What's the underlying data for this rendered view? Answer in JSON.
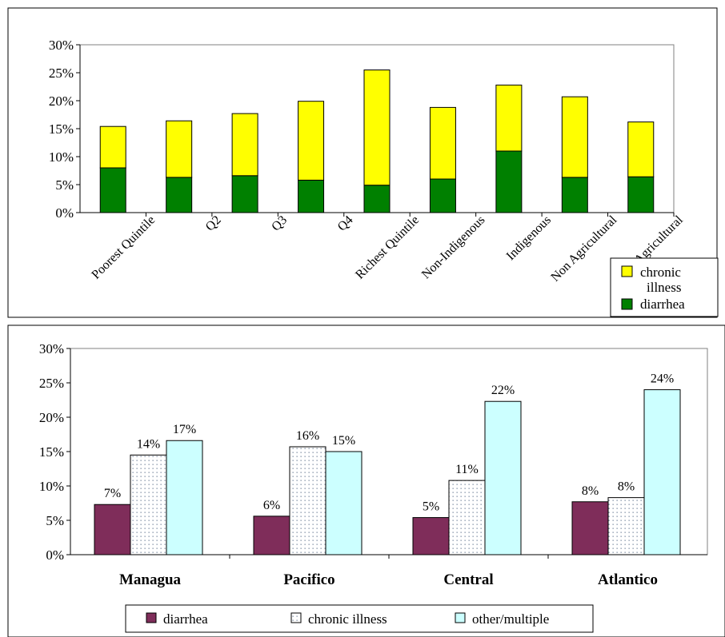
{
  "colors": {
    "chronic": "#ffff00",
    "diarrhea_top": "#008000",
    "diarrhea_bottom": "#7f2d5a",
    "other": "#ccffff",
    "dots": "#7a8aa0"
  },
  "chart_data": [
    {
      "type": "bar",
      "stacked": true,
      "categories": [
        "Poorest Quintile",
        "Q2",
        "Q3",
        "Q4",
        "Richest Quintile",
        "Non-Indigenous",
        "Indigenous",
        "Non Agricultural",
        "Agricultural"
      ],
      "series": [
        {
          "name": "diarrhea",
          "values": [
            8.0,
            6.3,
            6.6,
            5.8,
            4.9,
            6.0,
            11.0,
            6.3,
            6.4
          ]
        },
        {
          "name": "chronic illness",
          "values": [
            7.4,
            10.1,
            11.1,
            14.1,
            20.6,
            12.8,
            11.8,
            14.4,
            9.8
          ]
        }
      ],
      "yticks": [
        "0%",
        "5%",
        "10%",
        "15%",
        "20%",
        "25%",
        "30%"
      ],
      "ylim": [
        0,
        30
      ],
      "legend": [
        "chronic illness",
        "diarrhea"
      ],
      "legend_position": "bottom-right"
    },
    {
      "type": "bar",
      "categories": [
        "Managua",
        "Pacifico",
        "Central",
        "Atlantico"
      ],
      "series": [
        {
          "name": "diarrhea",
          "values": [
            7.3,
            5.6,
            5.4,
            7.7
          ],
          "labels": [
            "7%",
            "6%",
            "5%",
            "8%"
          ]
        },
        {
          "name": "chronic illness",
          "values": [
            14.5,
            15.7,
            10.8,
            8.3
          ],
          "labels": [
            "14%",
            "16%",
            "11%",
            "8%"
          ]
        },
        {
          "name": "other/multiple",
          "values": [
            16.6,
            15.0,
            22.3,
            24.0
          ],
          "labels": [
            "17%",
            "15%",
            "22%",
            "24%"
          ]
        }
      ],
      "yticks": [
        "0%",
        "5%",
        "10%",
        "15%",
        "20%",
        "25%",
        "30%"
      ],
      "ylim": [
        0,
        30
      ],
      "legend": [
        "diarrhea",
        "chronic illness",
        "other/multiple"
      ],
      "legend_position": "bottom"
    }
  ]
}
